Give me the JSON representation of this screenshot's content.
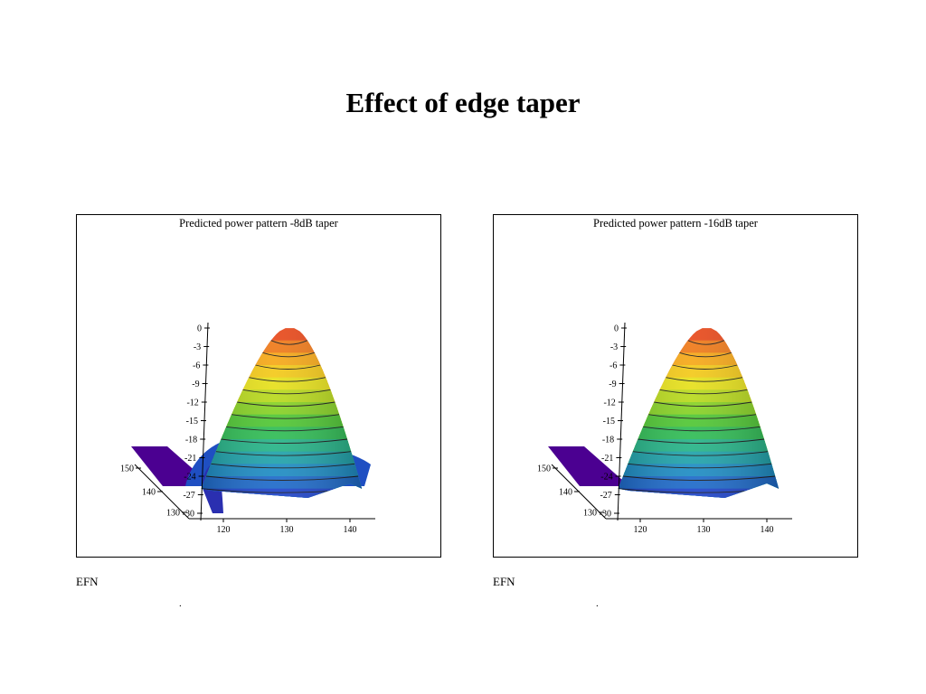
{
  "slide": {
    "title": "Effect of edge taper"
  },
  "panels": [
    {
      "caption": "EFN",
      "dot": "."
    },
    {
      "caption": "EFN",
      "dot": "."
    }
  ],
  "chart_data": [
    {
      "type": "surface-3d",
      "title": "Predicted power pattern -8dB taper",
      "z_ticks": [
        "0",
        "-3",
        "-6",
        "-9",
        "-12",
        "-15",
        "-18",
        "-21",
        "-24",
        "-27",
        "-30"
      ],
      "x_ticks": [
        "120",
        "130",
        "140"
      ],
      "y_ticks": [
        "130",
        "140",
        "150"
      ],
      "z_range": [
        -30,
        0
      ],
      "x_range": [
        114,
        142
      ],
      "peak_x": 130.5,
      "colormap": [
        "#4b0091",
        "#1f3fc9",
        "#1d86c9",
        "#22b09a",
        "#35c13c",
        "#9cd51f",
        "#f1e21a",
        "#f6a418",
        "#e8491b"
      ],
      "contour_interval_db": 2,
      "has_sidelobe": true
    },
    {
      "type": "surface-3d",
      "title": "Predicted power pattern -16dB taper",
      "z_ticks": [
        "0",
        "-3",
        "-6",
        "-9",
        "-12",
        "-15",
        "-18",
        "-21",
        "-24",
        "-27",
        "-30"
      ],
      "x_ticks": [
        "120",
        "130",
        "140"
      ],
      "y_ticks": [
        "130",
        "140",
        "150"
      ],
      "z_range": [
        -30,
        0
      ],
      "x_range": [
        114,
        142
      ],
      "peak_x": 130.5,
      "colormap": [
        "#4b0091",
        "#1f3fc9",
        "#1d86c9",
        "#22b09a",
        "#35c13c",
        "#9cd51f",
        "#f1e21a",
        "#f6a418",
        "#e8491b"
      ],
      "contour_interval_db": 2,
      "has_sidelobe": false
    }
  ]
}
